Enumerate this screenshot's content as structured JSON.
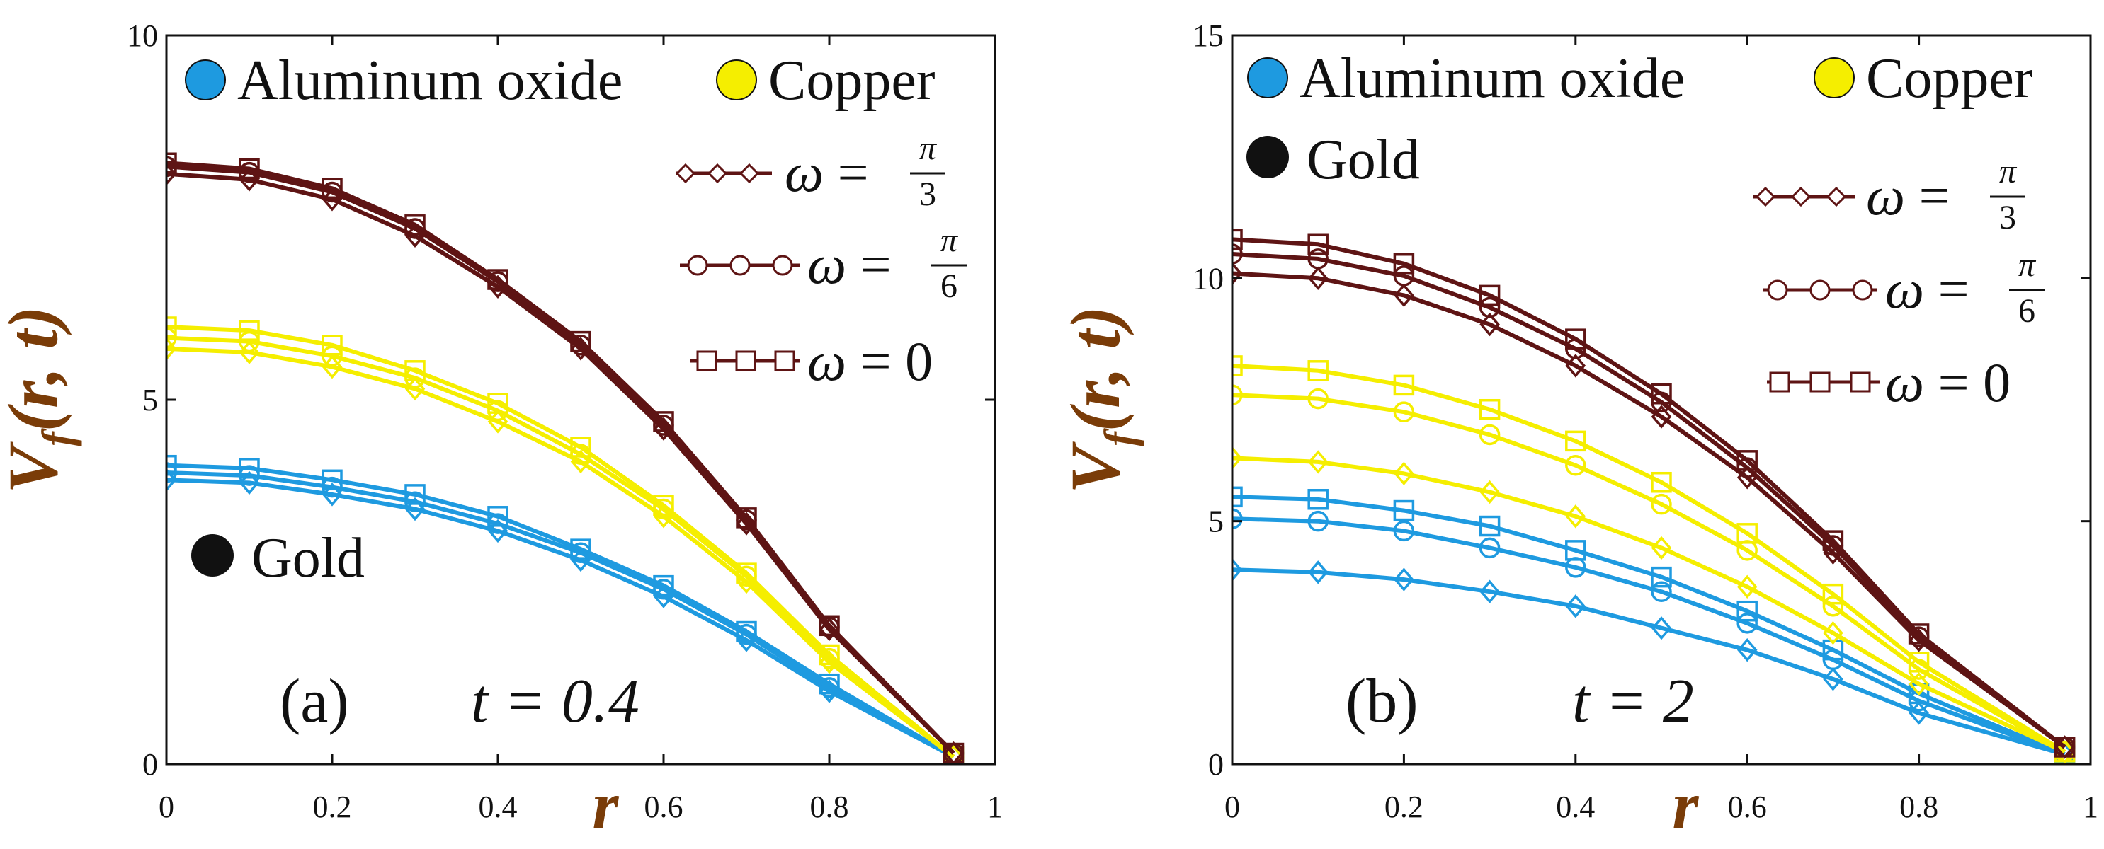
{
  "colors": {
    "aluminum": "#1e9ae0",
    "copper": "#f5ee00",
    "gold": "#5e1414",
    "gold_marker": "#111111",
    "axis_label": "#7a3c08",
    "frame": "#111111"
  },
  "chart_data": [
    {
      "type": "line",
      "panel_label": "(a)",
      "time_label": "t = 0.4",
      "xlabel": "r",
      "ylabel": "V_f(r, t)",
      "xlim": [
        0,
        1
      ],
      "ylim": [
        0,
        10
      ],
      "x_ticks": [
        "0",
        "0.2",
        "0.4",
        "0.6",
        "0.8",
        "1"
      ],
      "y_ticks": [
        "0",
        "5",
        "10"
      ],
      "legend_materials": [
        "Aluminum oxide",
        "Copper",
        "Gold"
      ],
      "legend_omega": [
        {
          "marker": "diamond",
          "label": "ω = π/3"
        },
        {
          "marker": "circle",
          "label": "ω = π/6"
        },
        {
          "marker": "square",
          "label": "ω = 0"
        }
      ],
      "x": [
        0,
        0.1,
        0.2,
        0.3,
        0.4,
        0.5,
        0.6,
        0.7,
        0.8,
        0.95
      ],
      "series": [
        {
          "material": "Aluminum oxide",
          "omega": "ω = π/3",
          "values": [
            3.9,
            3.86,
            3.7,
            3.5,
            3.2,
            2.8,
            2.3,
            1.7,
            1.0,
            0.1
          ]
        },
        {
          "material": "Aluminum oxide",
          "omega": "ω = π/6",
          "values": [
            4.0,
            3.96,
            3.8,
            3.6,
            3.3,
            2.9,
            2.4,
            1.78,
            1.05,
            0.1
          ]
        },
        {
          "material": "Aluminum oxide",
          "omega": "ω = 0",
          "values": [
            4.1,
            4.06,
            3.9,
            3.7,
            3.4,
            2.95,
            2.45,
            1.82,
            1.1,
            0.1
          ]
        },
        {
          "material": "Copper",
          "omega": "ω = π/3",
          "values": [
            5.7,
            5.65,
            5.45,
            5.15,
            4.7,
            4.15,
            3.4,
            2.5,
            1.4,
            0.1
          ]
        },
        {
          "material": "Copper",
          "omega": "ω = π/6",
          "values": [
            5.85,
            5.8,
            5.6,
            5.3,
            4.85,
            4.25,
            3.5,
            2.58,
            1.45,
            0.1
          ]
        },
        {
          "material": "Copper",
          "omega": "ω = 0",
          "values": [
            6.0,
            5.95,
            5.75,
            5.4,
            4.95,
            4.35,
            3.55,
            2.62,
            1.5,
            0.1
          ]
        },
        {
          "material": "Gold",
          "omega": "ω = π/3",
          "values": [
            8.1,
            8.02,
            7.75,
            7.25,
            6.55,
            5.7,
            4.6,
            3.3,
            1.85,
            0.15
          ]
        },
        {
          "material": "Gold",
          "omega": "ω = π/6",
          "values": [
            8.2,
            8.12,
            7.85,
            7.35,
            6.62,
            5.75,
            4.65,
            3.35,
            1.88,
            0.15
          ]
        },
        {
          "material": "Gold",
          "omega": "ω = 0",
          "values": [
            8.25,
            8.17,
            7.9,
            7.4,
            6.65,
            5.8,
            4.7,
            3.38,
            1.9,
            0.15
          ]
        }
      ]
    },
    {
      "type": "line",
      "panel_label": "(b)",
      "time_label": "t = 2",
      "xlabel": "r",
      "ylabel": "V_f(r, t)",
      "xlim": [
        0,
        1
      ],
      "ylim": [
        0,
        15
      ],
      "x_ticks": [
        "0",
        "0.2",
        "0.4",
        "0.6",
        "0.8",
        "1"
      ],
      "y_ticks": [
        "0",
        "5",
        "10",
        "15"
      ],
      "legend_materials": [
        "Aluminum oxide",
        "Copper",
        "Gold"
      ],
      "legend_omega": [
        {
          "marker": "diamond",
          "label": "ω = π/3"
        },
        {
          "marker": "circle",
          "label": "ω = π/6"
        },
        {
          "marker": "square",
          "label": "ω = 0"
        }
      ],
      "x": [
        0,
        0.1,
        0.2,
        0.3,
        0.4,
        0.5,
        0.6,
        0.7,
        0.8,
        0.97
      ],
      "series": [
        {
          "material": "Aluminum oxide",
          "omega": "ω = π/3",
          "values": [
            4.0,
            3.95,
            3.8,
            3.55,
            3.25,
            2.8,
            2.35,
            1.75,
            1.05,
            0.2
          ]
        },
        {
          "material": "Aluminum oxide",
          "omega": "ω = π/6",
          "values": [
            5.05,
            5.0,
            4.8,
            4.45,
            4.05,
            3.55,
            2.9,
            2.15,
            1.3,
            0.2
          ]
        },
        {
          "material": "Aluminum oxide",
          "omega": "ω = 0",
          "values": [
            5.5,
            5.45,
            5.22,
            4.9,
            4.4,
            3.85,
            3.15,
            2.35,
            1.45,
            0.2
          ]
        },
        {
          "material": "Copper",
          "omega": "ω = π/3",
          "values": [
            6.3,
            6.22,
            5.98,
            5.6,
            5.1,
            4.45,
            3.65,
            2.7,
            1.65,
            0.25
          ]
        },
        {
          "material": "Copper",
          "omega": "ω = π/6",
          "values": [
            7.6,
            7.52,
            7.25,
            6.78,
            6.15,
            5.35,
            4.4,
            3.25,
            1.95,
            0.25
          ]
        },
        {
          "material": "Copper",
          "omega": "ω = 0",
          "values": [
            8.2,
            8.1,
            7.8,
            7.3,
            6.65,
            5.8,
            4.75,
            3.5,
            2.1,
            0.25
          ]
        },
        {
          "material": "Gold",
          "omega": "ω = π/3",
          "values": [
            10.1,
            10.0,
            9.65,
            9.05,
            8.2,
            7.15,
            5.9,
            4.35,
            2.55,
            0.35
          ]
        },
        {
          "material": "Gold",
          "omega": "ω = π/6",
          "values": [
            10.5,
            10.4,
            10.05,
            9.4,
            8.55,
            7.45,
            6.1,
            4.5,
            2.62,
            0.35
          ]
        },
        {
          "material": "Gold",
          "omega": "ω = 0",
          "values": [
            10.8,
            10.7,
            10.3,
            9.65,
            8.75,
            7.62,
            6.25,
            4.6,
            2.68,
            0.35
          ]
        }
      ]
    }
  ]
}
